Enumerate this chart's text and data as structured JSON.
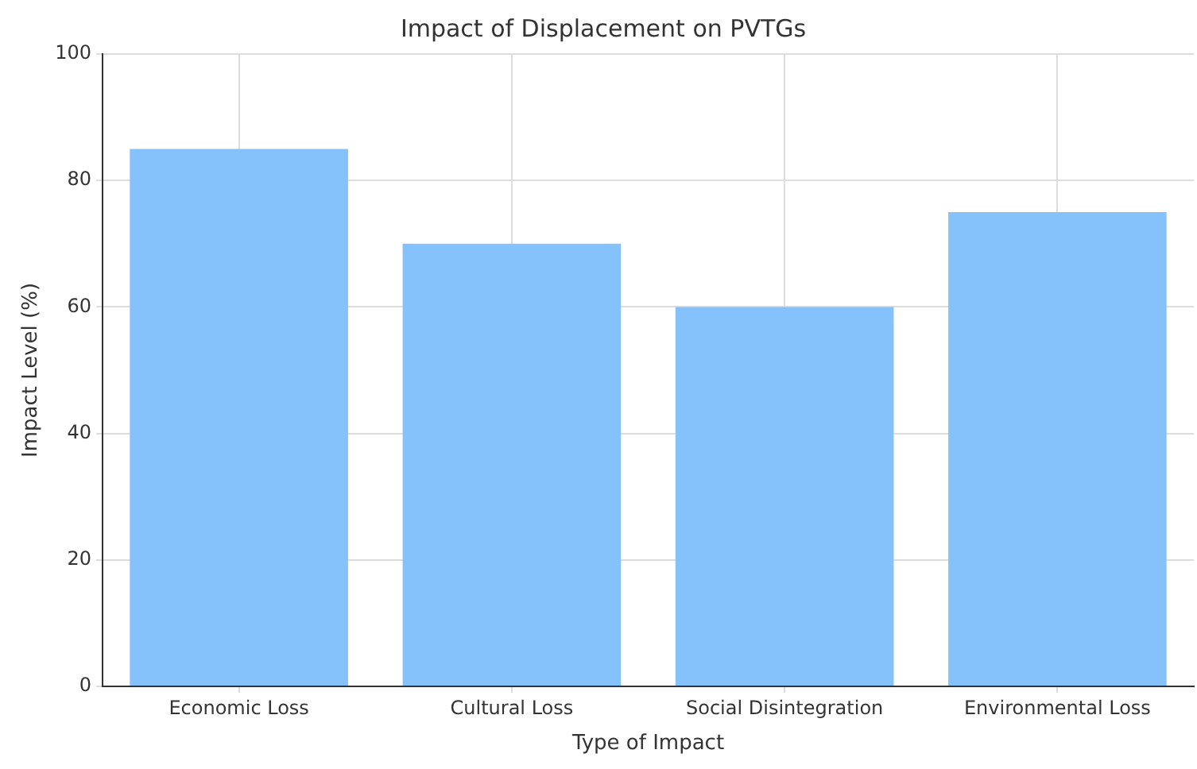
{
  "chart_data": {
    "type": "bar",
    "title": "Impact of Displacement on PVTGs",
    "xlabel": "Type of Impact",
    "ylabel": "Impact Level (%)",
    "categories": [
      "Economic Loss",
      "Cultural Loss",
      "Social Disintegration",
      "Environmental Loss"
    ],
    "values": [
      85,
      70,
      60,
      75
    ],
    "color": "#85c1fa",
    "ylim": [
      0,
      100
    ],
    "yticks": [
      0,
      20,
      40,
      60,
      80,
      100
    ],
    "grid": true,
    "legend": false
  }
}
